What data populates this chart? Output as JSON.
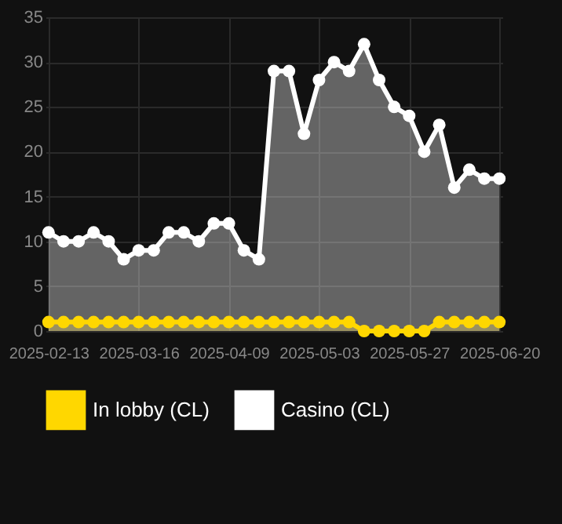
{
  "chart_data": {
    "type": "area",
    "categories": [
      "2025-02-13",
      null,
      null,
      null,
      null,
      null,
      "2025-03-16",
      null,
      null,
      null,
      null,
      null,
      "2025-04-09",
      null,
      null,
      null,
      null,
      null,
      "2025-05-03",
      null,
      null,
      null,
      null,
      null,
      "2025-05-27",
      null,
      null,
      null,
      null,
      null,
      "2025-06-20"
    ],
    "series": [
      {
        "name": "In lobby (CL)",
        "color": "#ffd700",
        "values": [
          1,
          1,
          1,
          1,
          1,
          1,
          1,
          1,
          1,
          1,
          1,
          1,
          1,
          1,
          1,
          1,
          1,
          1,
          1,
          1,
          1,
          0,
          0,
          0,
          0,
          0,
          1,
          1,
          1,
          1,
          1
        ]
      },
      {
        "name": "Casino (CL)",
        "color": "#ffffff",
        "values": [
          11,
          10,
          10,
          11,
          10,
          8,
          9,
          9,
          11,
          11,
          10,
          12,
          12,
          9,
          8,
          29,
          29,
          22,
          28,
          30,
          29,
          32,
          28,
          25,
          24,
          20,
          23,
          16,
          18,
          17,
          17
        ]
      }
    ],
    "ylim": [
      0,
      35
    ],
    "yticks": [
      0,
      5,
      10,
      15,
      20,
      25,
      30,
      35
    ],
    "grid": true,
    "legend": "bottom",
    "marker": "circle",
    "line_style": "solid"
  }
}
